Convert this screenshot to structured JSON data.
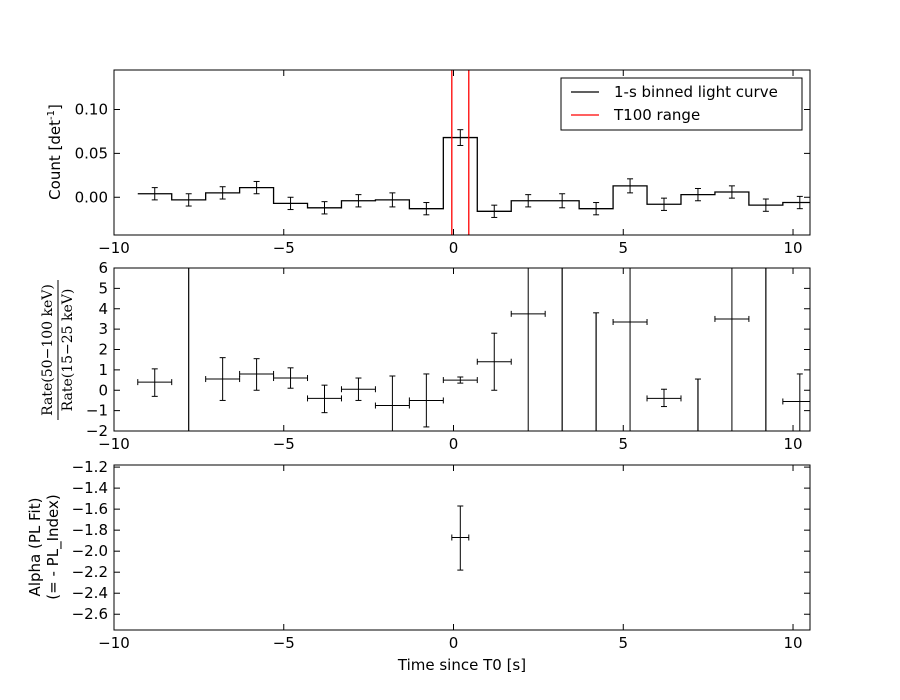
{
  "chart_data": [
    {
      "type": "line",
      "ylabel": "Count [det",
      "ylabel_sup": "-1",
      "ylabel_end": "]",
      "xlim": [
        -10,
        10.5
      ],
      "ylim": [
        -0.043,
        0.145
      ],
      "xticks": [
        -10,
        -5,
        0,
        5,
        10
      ],
      "xtick_labels": [
        "−10",
        "−5",
        "0",
        "5",
        "10"
      ],
      "yticks": [
        0.0,
        0.05,
        0.1
      ],
      "ytick_labels": [
        "0.00",
        "0.05",
        "0.10"
      ],
      "legend": {
        "placement": "top-right",
        "entries": [
          {
            "label": "1-s binned light curve",
            "color": "#000000"
          },
          {
            "label": "T100 range",
            "color": "#ff0000"
          }
        ]
      },
      "t100_lines": [
        -0.05,
        0.45
      ],
      "bin_width": 1,
      "series": [
        {
          "label": "1-s binned light curve",
          "x": [
            -8.8,
            -7.8,
            -6.8,
            -5.8,
            -4.8,
            -3.8,
            -2.8,
            -1.8,
            -0.8,
            0.2,
            1.2,
            2.2,
            3.2,
            4.2,
            5.2,
            6.2,
            7.2,
            8.2,
            9.2,
            10.2
          ],
          "y": [
            0.004,
            -0.003,
            0.005,
            0.011,
            -0.007,
            -0.012,
            -0.004,
            -0.003,
            -0.013,
            0.068,
            -0.016,
            -0.004,
            -0.004,
            -0.013,
            0.013,
            -0.008,
            0.003,
            0.006,
            -0.009,
            -0.006
          ],
          "yerr": [
            0.007,
            0.007,
            0.007,
            0.007,
            0.007,
            0.007,
            0.007,
            0.008,
            0.007,
            0.009,
            0.007,
            0.007,
            0.008,
            0.007,
            0.008,
            0.007,
            0.007,
            0.007,
            0.007,
            0.007
          ]
        }
      ]
    },
    {
      "type": "scatter",
      "ylabel_num": "Rate(50−100 keV)",
      "ylabel_den": "Rate(15−25 keV)",
      "xlim": [
        -10,
        10.5
      ],
      "ylim": [
        -2,
        6
      ],
      "xticks": [
        -10,
        -5,
        0,
        5,
        10
      ],
      "xtick_labels": [
        "−10",
        "−5",
        "0",
        "5",
        "10"
      ],
      "yticks": [
        -2,
        -1,
        0,
        1,
        2,
        3,
        4,
        5,
        6
      ],
      "ytick_labels": [
        "−2",
        "−1",
        "0",
        "1",
        "2",
        "3",
        "4",
        "5",
        "6"
      ],
      "series": [
        {
          "x": [
            -8.8,
            -6.8,
            -5.8,
            -4.8,
            -3.8,
            -2.8,
            -1.8,
            -0.8,
            0.2,
            1.2,
            2.2,
            5.2,
            6.2,
            8.2,
            10.2
          ],
          "y": [
            0.4,
            0.55,
            0.8,
            0.6,
            -0.4,
            0.05,
            -0.75,
            -0.5,
            0.5,
            1.4,
            3.75,
            3.35,
            -0.4,
            3.5,
            -0.55
          ],
          "xerr": [
            0.5,
            0.5,
            0.5,
            0.5,
            0.5,
            0.5,
            0.5,
            0.5,
            0.5,
            0.5,
            0.5,
            0.5,
            0.5,
            0.5,
            0.5
          ],
          "ylo": [
            -0.3,
            -0.5,
            0.0,
            0.1,
            -1.1,
            -0.5,
            -2.0,
            -1.8,
            0.35,
            0.0,
            -2.0,
            -2.0,
            -0.8,
            -2.0,
            -2.0
          ],
          "yhi": [
            1.05,
            1.6,
            1.55,
            1.1,
            0.25,
            0.6,
            0.7,
            0.8,
            0.65,
            2.8,
            6.0,
            6.0,
            0.05,
            6.0,
            0.8
          ]
        }
      ],
      "vertical_bars": [
        {
          "x": -7.8,
          "ylo": -2.0,
          "yhi": 6.0
        },
        {
          "x": 3.2,
          "ylo": -2.0,
          "yhi": 6.0
        },
        {
          "x": 4.2,
          "ylo": -2.0,
          "yhi": 3.8
        },
        {
          "x": 7.2,
          "ylo": -2.0,
          "yhi": 0.55
        },
        {
          "x": 9.2,
          "ylo": -2.0,
          "yhi": 6.0
        }
      ]
    },
    {
      "type": "scatter",
      "ylabel_line1": "Alpha (PL Fit)",
      "ylabel_line2": "(= - PL_Index)",
      "xlabel": "Time since T0 [s]",
      "xlim": [
        -10,
        10.5
      ],
      "ylim": [
        -2.75,
        -1.18
      ],
      "xticks": [
        -10,
        -5,
        0,
        5,
        10
      ],
      "xtick_labels": [
        "−10",
        "−5",
        "0",
        "5",
        "10"
      ],
      "yticks": [
        -2.6,
        -2.4,
        -2.2,
        -2.0,
        -1.8,
        -1.6,
        -1.4,
        -1.2
      ],
      "ytick_labels": [
        "−2.6",
        "−2.4",
        "−2.2",
        "−2.0",
        "−1.8",
        "−1.6",
        "−1.4",
        "−1.2"
      ],
      "series": [
        {
          "x": [
            0.2
          ],
          "y": [
            -1.87
          ],
          "xerr": [
            0.25
          ],
          "ylo": [
            -2.18
          ],
          "yhi": [
            -1.57
          ]
        }
      ]
    }
  ]
}
